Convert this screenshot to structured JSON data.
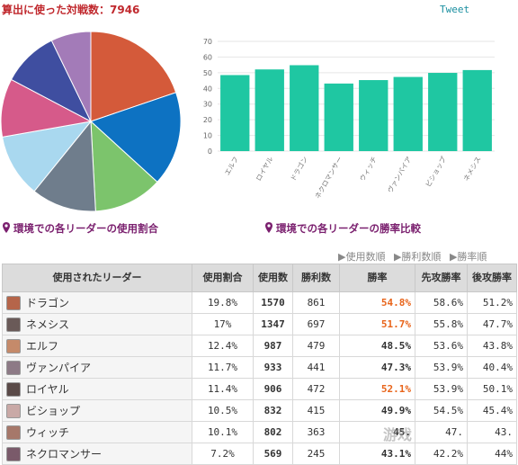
{
  "header": {
    "title": "算出に使った対戦数：7946",
    "tweet_label": "Tweet"
  },
  "captions": {
    "pie": "環境での各リーダーの使用割合",
    "bar": "環境での各リーダーの勝率比較"
  },
  "sort_links": [
    "▶使用数順",
    "▶勝利数順",
    "▶勝率順"
  ],
  "table": {
    "headers": [
      "使用されたリーダー",
      "使用割合",
      "使用数",
      "勝利数",
      "勝率",
      "先攻勝率",
      "後攻勝率"
    ],
    "rows": [
      {
        "leader": "ドラゴン",
        "share": "19.8%",
        "count": "1570",
        "wins": "861",
        "winrate": "54.8%",
        "first": "58.6%",
        "second": "51.2%",
        "highlight": true,
        "avatar_color": "#b5654a"
      },
      {
        "leader": "ネメシス",
        "share": "17%",
        "count": "1347",
        "wins": "697",
        "winrate": "51.7%",
        "first": "55.8%",
        "second": "47.7%",
        "highlight": true,
        "avatar_color": "#6a5a58"
      },
      {
        "leader": "エルフ",
        "share": "12.4%",
        "count": "987",
        "wins": "479",
        "winrate": "48.5%",
        "first": "53.6%",
        "second": "43.8%",
        "highlight": false,
        "avatar_color": "#c58a6a"
      },
      {
        "leader": "ヴァンパイア",
        "share": "11.7%",
        "count": "933",
        "wins": "441",
        "winrate": "47.3%",
        "first": "53.9%",
        "second": "40.4%",
        "highlight": false,
        "avatar_color": "#8d7a86"
      },
      {
        "leader": "ロイヤル",
        "share": "11.4%",
        "count": "906",
        "wins": "472",
        "winrate": "52.1%",
        "first": "53.9%",
        "second": "50.1%",
        "highlight": true,
        "avatar_color": "#5a4a48"
      },
      {
        "leader": "ビショップ",
        "share": "10.5%",
        "count": "832",
        "wins": "415",
        "winrate": "49.9%",
        "first": "54.5%",
        "second": "45.4%",
        "highlight": false,
        "avatar_color": "#c9a9a6"
      },
      {
        "leader": "ウィッチ",
        "share": "10.1%",
        "count": "802",
        "wins": "363",
        "winrate": "45.",
        "first": "47.",
        "second": "43.",
        "highlight": false,
        "avatar_color": "#a6786a"
      },
      {
        "leader": "ネクロマンサー",
        "share": "7.2%",
        "count": "569",
        "wins": "245",
        "winrate": "43.1%",
        "first": "42.2%",
        "second": "44%",
        "highlight": false,
        "avatar_color": "#7a5a6a"
      }
    ]
  },
  "chart_data": [
    {
      "type": "pie",
      "title": "",
      "slices": [
        {
          "label": "ドラゴン",
          "value": 19.8,
          "color": "#d45a3a"
        },
        {
          "label": "ネメシス",
          "value": 17,
          "color": "#0d72c2"
        },
        {
          "label": "エルフ",
          "value": 12.4,
          "color": "#7cc46c"
        },
        {
          "label": "ヴァンパイア",
          "value": 11.7,
          "color": "#6f7d8c"
        },
        {
          "label": "ロイヤル",
          "value": 11.4,
          "color": "#a9d8ef"
        },
        {
          "label": "ビショップ",
          "value": 10.5,
          "color": "#d65a8a"
        },
        {
          "label": "ウィッチ",
          "value": 10.1,
          "color": "#3f4ea0"
        },
        {
          "label": "ネクロマンサー",
          "value": 7.2,
          "color": "#a37bb8"
        }
      ]
    },
    {
      "type": "bar",
      "title": "",
      "categories": [
        "エルフ",
        "ロイヤル",
        "ドラゴン",
        "ネクロマンサー",
        "ウィッチ",
        "ヴァンパイア",
        "ビショップ",
        "ネメシス"
      ],
      "values": [
        48.5,
        52.1,
        54.8,
        43.1,
        45.3,
        47.3,
        49.9,
        51.7
      ],
      "ylim": [
        0,
        70
      ],
      "yticks": [
        0,
        10,
        20,
        30,
        40,
        50,
        60,
        70
      ],
      "grid": true,
      "bar_color": "#1fc7a2"
    }
  ],
  "watermark": "游戏"
}
